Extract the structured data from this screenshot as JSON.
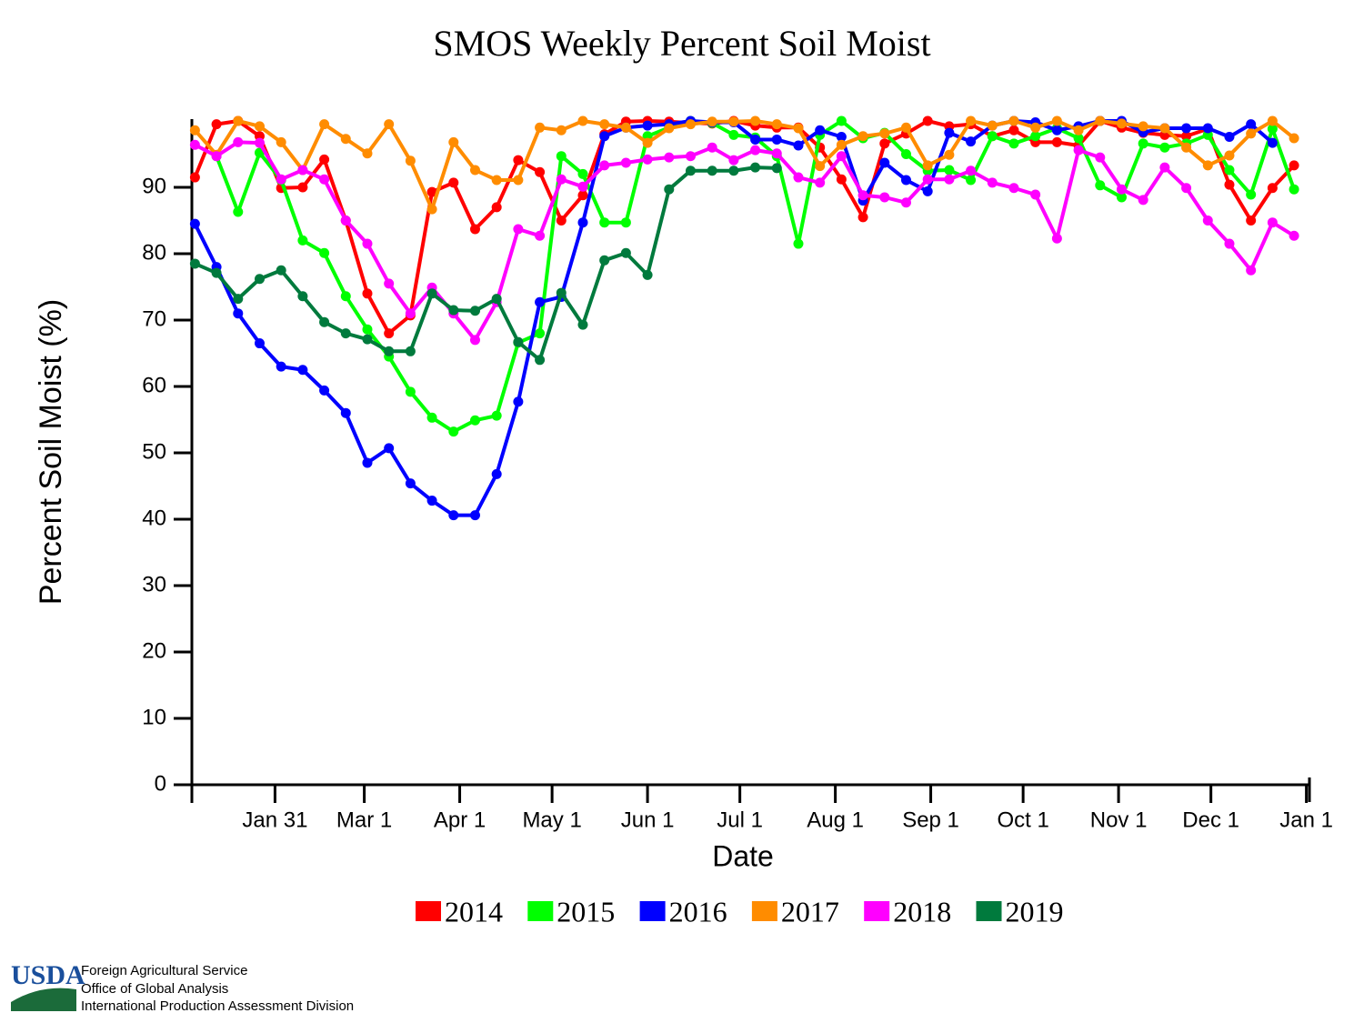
{
  "chart_data": {
    "type": "line",
    "title": "SMOS Weekly Percent Soil Moist",
    "x_label": "Date",
    "y_label": "Percent Soil Moist (%)",
    "xlim": [
      3,
      366
    ],
    "ylim": [
      0,
      100
    ],
    "xticks": [
      {
        "value": 30,
        "label": "Jan 31"
      },
      {
        "value": 59,
        "label": "Mar 1"
      },
      {
        "value": 90,
        "label": "Apr 1"
      },
      {
        "value": 120,
        "label": "May 1"
      },
      {
        "value": 151,
        "label": "Jun 1"
      },
      {
        "value": 181,
        "label": "Jul 1"
      },
      {
        "value": 212,
        "label": "Aug 1"
      },
      {
        "value": 243,
        "label": "Sep 1"
      },
      {
        "value": 273,
        "label": "Oct 1"
      },
      {
        "value": 304,
        "label": "Nov 1"
      },
      {
        "value": 334,
        "label": "Dec 1"
      },
      {
        "value": 365,
        "label": "Jan 1"
      }
    ],
    "yticks": [
      0,
      10,
      20,
      30,
      40,
      50,
      60,
      70,
      80,
      90
    ],
    "x": [
      4,
      11,
      18,
      25,
      32,
      39,
      46,
      53,
      60,
      67,
      74,
      81,
      88,
      95,
      102,
      109,
      116,
      123,
      130,
      137,
      144,
      151,
      158,
      165,
      172,
      179,
      186,
      193,
      200,
      207,
      214,
      221,
      228,
      235,
      242,
      249,
      256,
      263,
      270,
      277,
      284,
      291,
      298,
      305,
      312,
      319,
      326,
      333,
      340,
      347,
      354,
      361
    ],
    "series": [
      {
        "name": "2014",
        "color": "#ff0000",
        "values": [
          91.5,
          99.5,
          100,
          97.7,
          89.9,
          90,
          94.2,
          85,
          74,
          68,
          70.7,
          89.3,
          90.7,
          83.7,
          87,
          94.1,
          92.3,
          85,
          88.8,
          98,
          99.9,
          100,
          99.9,
          99.7,
          99.6,
          100,
          99.3,
          99,
          99,
          96,
          91.2,
          85.5,
          96.6,
          98.1,
          100,
          99.2,
          99.5,
          97.7,
          98.6,
          96.8,
          96.8,
          96.3,
          100,
          99,
          98.2,
          97.9,
          97.7,
          98.8,
          90.4,
          85,
          89.9,
          93.3
        ]
      },
      {
        "name": "2015",
        "color": "#00ff00",
        "values": [
          null,
          94.7,
          86.3,
          95.2,
          91.1,
          82,
          80.1,
          73.6,
          68.6,
          64.5,
          59.2,
          55.3,
          53.2,
          54.9,
          55.6,
          66.6,
          68,
          94.7,
          92,
          84.7,
          84.7,
          97.7,
          99,
          100,
          99.7,
          97.9,
          97.5,
          94.7,
          81.5,
          97.9,
          100,
          97.4,
          98.2,
          95,
          92.5,
          92.6,
          91.1,
          97.7,
          96.6,
          97.7,
          98.9,
          97.4,
          90.3,
          88.5,
          96.6,
          96,
          96.6,
          97.9,
          92.6,
          88.9,
          98.8,
          89.7
        ]
      },
      {
        "name": "2016",
        "color": "#0000ff",
        "values": [
          84.5,
          78,
          71,
          66.5,
          63,
          62.5,
          59.4,
          56,
          48.5,
          50.7,
          45.4,
          42.8,
          40.6,
          40.6,
          46.8,
          57.7,
          72.7,
          73.5,
          84.7,
          97.7,
          99,
          99.3,
          99.5,
          100,
          99.8,
          99.8,
          97.2,
          97.2,
          96.3,
          98.6,
          97.6,
          88,
          93.7,
          91.1,
          89.4,
          98.2,
          96.9,
          99.3,
          100,
          99.8,
          98.6,
          99.2,
          100,
          100,
          98.3,
          98.9,
          98.9,
          98.9,
          97.6,
          99.5,
          96.7,
          null
        ]
      },
      {
        "name": "2017",
        "color": "#ff8c00",
        "values": [
          98.6,
          94.9,
          100,
          99.2,
          96.8,
          92.6,
          99.5,
          97.3,
          95.1,
          99.5,
          94,
          86.7,
          96.8,
          92.6,
          91.1,
          91.1,
          99,
          98.6,
          100,
          99.5,
          99,
          96.7,
          98.9,
          99.5,
          99.9,
          99.9,
          100,
          99.5,
          98.9,
          93.2,
          96.4,
          97.7,
          98.1,
          99,
          93.3,
          94.9,
          100,
          99.3,
          100,
          99,
          100,
          98.6,
          100,
          99.6,
          99.2,
          98.9,
          96,
          93.3,
          94.8,
          98.1,
          100,
          97.4
        ]
      },
      {
        "name": "2018",
        "color": "#ff00ff",
        "values": [
          96.4,
          94.7,
          96.8,
          96.7,
          91.2,
          92.6,
          91.2,
          85,
          81.5,
          75.5,
          71,
          74.9,
          71,
          67,
          72.7,
          83.7,
          82.7,
          91.2,
          90.1,
          93.3,
          93.7,
          94.2,
          94.5,
          94.7,
          96,
          94.1,
          95.6,
          95.1,
          91.5,
          90.7,
          94.7,
          88.8,
          88.5,
          87.7,
          91.2,
          91.2,
          92.5,
          90.7,
          89.9,
          88.9,
          82.3,
          95.6,
          94.5,
          89.7,
          88.1,
          93,
          89.9,
          85,
          81.5,
          77.5,
          84.7,
          82.7
        ]
      },
      {
        "name": "2019",
        "color": "#007a3d",
        "values": [
          78.5,
          77.1,
          73.2,
          76.2,
          77.5,
          73.6,
          69.7,
          68,
          67.1,
          65.3,
          65.3,
          74,
          71.5,
          71.4,
          73.2,
          66.7,
          64,
          74.1,
          69.3,
          79,
          80.1,
          76.8,
          89.7,
          92.5,
          92.5,
          92.5,
          93,
          92.9,
          null,
          null,
          null,
          null,
          null,
          null,
          null,
          null,
          null,
          null,
          null,
          null,
          null,
          null,
          null,
          null,
          null,
          null,
          null,
          null,
          null,
          null,
          null,
          null
        ]
      }
    ]
  },
  "footer": {
    "logo": "USDA",
    "lines": [
      "Foreign Agricultural Service",
      "Office of Global Analysis",
      "International Production Assessment Division"
    ]
  }
}
